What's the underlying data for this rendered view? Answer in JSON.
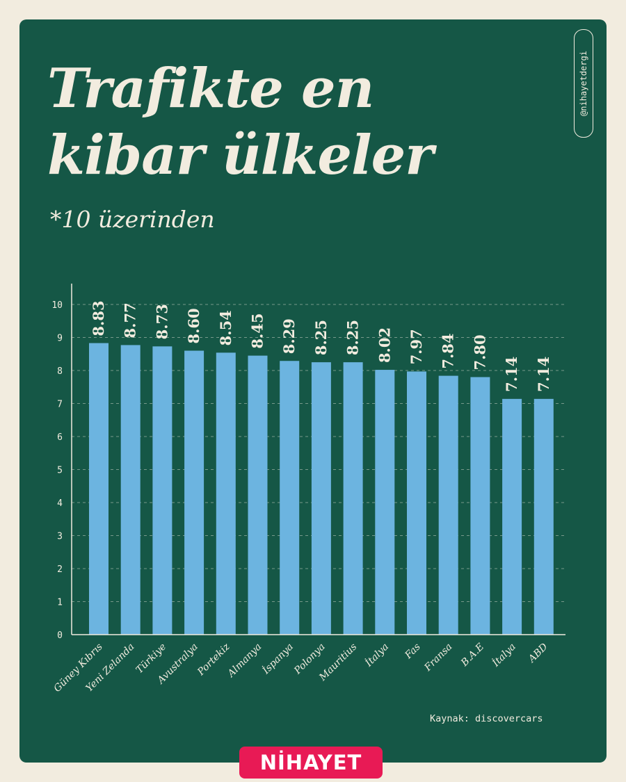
{
  "header": {
    "title_lines": [
      "Trafikte en",
      "kibar ülkeler"
    ],
    "subtitle": "*10 üzerinden",
    "handle": "@nihayetdergi"
  },
  "footer": {
    "source": "Kaynak: discovercars",
    "brand": "NİHAYET"
  },
  "colors": {
    "background": "#f2ecdf",
    "card": "#155746",
    "bar": "#6cb4e0",
    "text": "#f2ecdf",
    "brand": "#e81a55"
  },
  "chart_data": {
    "type": "bar",
    "title": "Trafikte en kibar ülkeler",
    "subtitle": "*10 üzerinden",
    "categories": [
      "Güney Kıbrıs",
      "Yeni Zelanda",
      "Türkiye",
      "Avustralya",
      "Portekiz",
      "Almanya",
      "İspanya",
      "Polonya",
      "Mauritius",
      "İtalya",
      "Fas",
      "Fransa",
      "B.A.E",
      "İtalya",
      "ABD"
    ],
    "values": [
      8.83,
      8.77,
      8.73,
      8.6,
      8.54,
      8.45,
      8.29,
      8.25,
      8.25,
      8.02,
      7.97,
      7.84,
      7.8,
      7.14,
      7.14
    ],
    "value_labels": [
      "8.83",
      "8.77",
      "8.73",
      "8.60",
      "8.54",
      "8.45",
      "8.29",
      "8.25",
      "8.25",
      "8.02",
      "7.97",
      "7.84",
      "7.80",
      "7.14",
      "7.14"
    ],
    "yticks": [
      "0",
      "1",
      "2",
      "3",
      "4",
      "5",
      "6",
      "7",
      "8",
      "9",
      "10"
    ],
    "ylim": [
      0,
      10
    ],
    "grid": true,
    "xlabel": "",
    "ylabel": ""
  }
}
